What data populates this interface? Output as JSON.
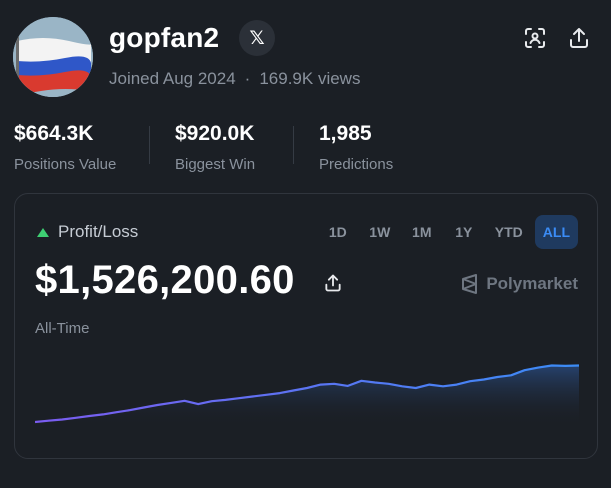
{
  "profile": {
    "username": "gopfan2",
    "x_icon": "𝕏",
    "joined": "Joined Aug 2024",
    "separator": "·",
    "views": "169.9K views",
    "avatar_desc_icon": "russian-flag-avatar"
  },
  "actions": {
    "scan_icon": "scan-icon",
    "share_icon": "share-icon"
  },
  "stats": [
    {
      "value": "$664.3K",
      "label": "Positions Value"
    },
    {
      "value": "$920.0K",
      "label": "Biggest Win"
    },
    {
      "value": "1,985",
      "label": "Predictions"
    }
  ],
  "card": {
    "title": "Profit/Loss",
    "ranges": [
      "1D",
      "1W",
      "1M",
      "1Y",
      "YTD",
      "ALL"
    ],
    "selected_range": "ALL",
    "amount": "$1,526,200.60",
    "brand": "Polymarket",
    "period": "All-Time",
    "colors": {
      "positive": "#3ecf73",
      "accent": "#3b8cf6",
      "line_start": "#7b5cf0",
      "line_end": "#3b8cf6"
    }
  },
  "chart_data": {
    "type": "line",
    "title": "",
    "xlabel": "",
    "ylabel": "",
    "x": [
      0,
      1,
      2,
      3,
      4,
      5,
      6,
      7,
      8,
      9,
      10,
      11,
      12,
      13,
      14,
      15,
      16,
      17,
      18,
      19,
      20,
      21,
      22,
      23,
      24,
      25,
      26,
      27,
      28,
      29,
      30,
      31,
      32,
      33,
      34,
      35,
      36,
      37,
      38,
      39,
      40
    ],
    "values": [
      0,
      3,
      6,
      10,
      14,
      18,
      23,
      28,
      34,
      40,
      45,
      50,
      42,
      49,
      52,
      56,
      60,
      64,
      68,
      74,
      80,
      88,
      90,
      85,
      97,
      93,
      90,
      84,
      80,
      88,
      84,
      88,
      96,
      100,
      106,
      110,
      122,
      128,
      133,
      132,
      133
    ],
    "ylim": [
      0,
      160
    ],
    "grid": false,
    "fill": true
  }
}
